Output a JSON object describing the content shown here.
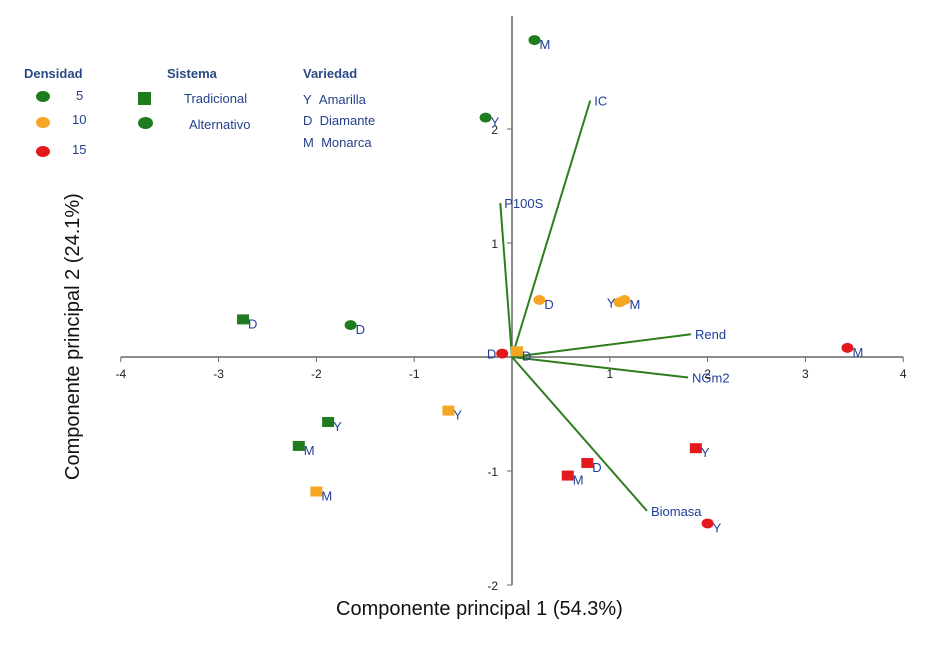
{
  "chart_data": {
    "type": "scatter",
    "title": "",
    "xlabel": "Componente principal 1",
    "xlabel_pct": "(54.3%)",
    "ylabel": "Componente principal 2",
    "ylabel_pct": "(24.1%)",
    "xlim": [
      -4,
      4
    ],
    "ylim": [
      -2,
      2.9
    ],
    "xticks": [
      -4,
      -3,
      -2,
      -1,
      1,
      2,
      3,
      4
    ],
    "yticks": [
      -2,
      -1,
      1,
      2
    ],
    "colors": {
      "5": "#1e7b1e",
      "10": "#f5a623",
      "15": "#e3191c",
      "vector": "#2e7d1e",
      "axis": "#666666",
      "label": "#1f3f99"
    },
    "legend": {
      "densidad": {
        "title": "Densidad",
        "items": [
          {
            "label": "5",
            "key": "5"
          },
          {
            "label": "10",
            "key": "10"
          },
          {
            "label": "15",
            "key": "15"
          }
        ]
      },
      "sistema": {
        "title": "Sistema",
        "items": [
          {
            "label": "Tradicional",
            "marker": "square"
          },
          {
            "label": "Alternativo",
            "marker": "circle"
          }
        ]
      },
      "variedad": {
        "title": "Variedad",
        "items": [
          {
            "code": "Y",
            "name": "Amarilla"
          },
          {
            "code": "D",
            "name": "Diamante"
          },
          {
            "code": "M",
            "name": "Monarca"
          }
        ]
      }
    },
    "vectors": [
      {
        "name": "IC",
        "x": 0.8,
        "y": 2.25
      },
      {
        "name": "P100S",
        "x": -0.12,
        "y": 1.35
      },
      {
        "name": "Rend",
        "x": 1.83,
        "y": 0.2
      },
      {
        "name": "NGm2",
        "x": 1.8,
        "y": -0.18
      },
      {
        "name": "Biomasa",
        "x": 1.38,
        "y": -1.35
      }
    ],
    "points": [
      {
        "x": 0.23,
        "y": 2.78,
        "marker": "circle",
        "density": "5",
        "label": "M"
      },
      {
        "x": -0.27,
        "y": 2.1,
        "marker": "circle",
        "density": "5",
        "label": "Y"
      },
      {
        "x": -2.75,
        "y": 0.33,
        "marker": "square",
        "density": "5",
        "label": "D"
      },
      {
        "x": -1.65,
        "y": 0.28,
        "marker": "circle",
        "density": "5",
        "label": "D"
      },
      {
        "x": -1.88,
        "y": -0.57,
        "marker": "square",
        "density": "5",
        "label": "Y"
      },
      {
        "x": -2.18,
        "y": -0.78,
        "marker": "square",
        "density": "5",
        "label": "M"
      },
      {
        "x": 0.28,
        "y": 0.5,
        "marker": "circle",
        "density": "10",
        "label": "D"
      },
      {
        "x": 1.15,
        "y": 0.5,
        "marker": "circle",
        "density": "10",
        "label": "M"
      },
      {
        "x": 1.1,
        "y": 0.48,
        "marker": "circle",
        "density": "10",
        "label": "Y"
      },
      {
        "x": -0.65,
        "y": -0.47,
        "marker": "square",
        "density": "10",
        "label": "Y"
      },
      {
        "x": -2.0,
        "y": -1.18,
        "marker": "square",
        "density": "10",
        "label": "M"
      },
      {
        "x": 0.05,
        "y": 0.05,
        "marker": "square",
        "density": "10",
        "label": "D"
      },
      {
        "x": -0.1,
        "y": 0.03,
        "marker": "circle",
        "density": "15",
        "label": "D"
      },
      {
        "x": 3.43,
        "y": 0.08,
        "marker": "circle",
        "density": "15",
        "label": "M"
      },
      {
        "x": 1.88,
        "y": -0.8,
        "marker": "square",
        "density": "15",
        "label": "Y"
      },
      {
        "x": 0.77,
        "y": -0.93,
        "marker": "square",
        "density": "15",
        "label": "D"
      },
      {
        "x": 0.57,
        "y": -1.04,
        "marker": "square",
        "density": "15",
        "label": "M"
      },
      {
        "x": 2.0,
        "y": -1.46,
        "marker": "circle",
        "density": "15",
        "label": "Y"
      }
    ]
  }
}
